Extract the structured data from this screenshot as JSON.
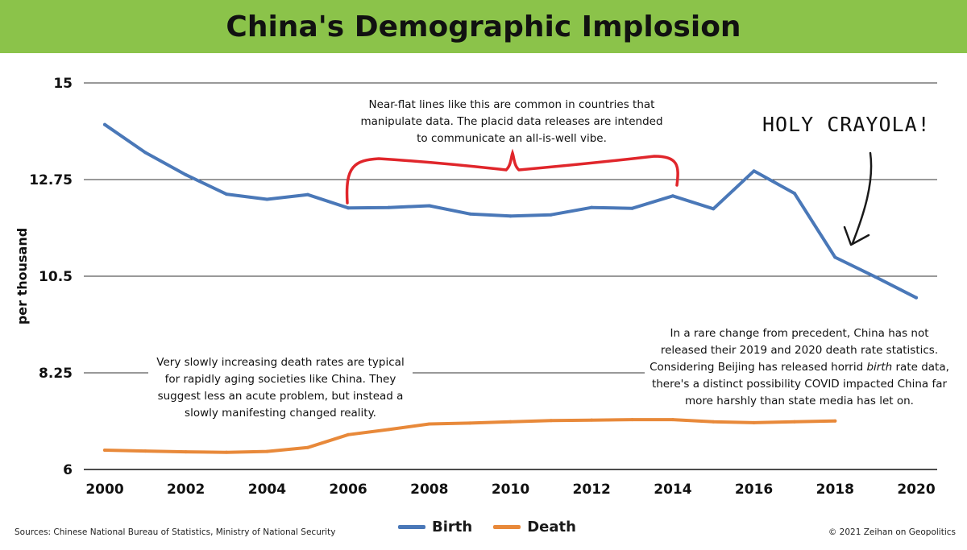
{
  "header": {
    "title": "China's Demographic Implosion"
  },
  "chart_data": {
    "type": "line",
    "title": "China's Demographic Implosion",
    "xlabel": "",
    "ylabel": "per thousand",
    "ylim": [
      6,
      15
    ],
    "yticks": [
      "15",
      "12.75",
      "10.5",
      "8.25",
      "6"
    ],
    "ytick_values": [
      15,
      12.75,
      10.5,
      8.25,
      6
    ],
    "xticks": [
      2000,
      2002,
      2004,
      2006,
      2008,
      2010,
      2012,
      2014,
      2016,
      2018,
      2020
    ],
    "grid": true,
    "legend_position": "bottom-center",
    "series": [
      {
        "name": "Birth",
        "color": "#4a78b8",
        "x": [
          2000,
          2001,
          2002,
          2003,
          2004,
          2005,
          2006,
          2007,
          2008,
          2009,
          2010,
          2011,
          2012,
          2013,
          2014,
          2015,
          2016,
          2017,
          2018,
          2019,
          2020
        ],
        "values": [
          14.03,
          13.38,
          12.86,
          12.41,
          12.29,
          12.4,
          12.09,
          12.1,
          12.14,
          11.95,
          11.9,
          11.93,
          12.1,
          12.08,
          12.37,
          12.07,
          12.95,
          12.43,
          10.94,
          10.48,
          10.0
        ]
      },
      {
        "name": "Death",
        "color": "#e8893a",
        "x": [
          2000,
          2001,
          2002,
          2003,
          2004,
          2005,
          2006,
          2007,
          2008,
          2009,
          2010,
          2011,
          2012,
          2013,
          2014,
          2015,
          2016,
          2017,
          2018
        ],
        "values": [
          6.45,
          6.43,
          6.41,
          6.4,
          6.42,
          6.51,
          6.81,
          6.93,
          7.06,
          7.08,
          7.11,
          7.14,
          7.15,
          7.16,
          7.16,
          7.11,
          7.09,
          7.11,
          7.13
        ]
      }
    ],
    "annotations": {
      "flat_note": "Near-flat lines like this are common in countries that manipulate data. The placid data releases are intended to communicate an all-is-well vibe.",
      "holy": "HOLY CRAYOLA!",
      "death_note": "Very slowly increasing death rates are typical for rapidly aging societies like China. They suggest less an acute problem, but instead a slowly manifesting changed reality.",
      "covid_note_a": "In a rare change from precedent, China has not released their 2019 and 2020 death rate statistics. Considering Beijing has released horrid ",
      "covid_note_em": "birth",
      "covid_note_b": " rate data, there's a distinct possibility COVID impacted China far more harshly than state media has let on."
    }
  },
  "footer": {
    "source": "Sources: Chinese National Bureau of Statistics, Ministry of National Security",
    "copyright": "© 2021 Zeihan on Geopolitics"
  }
}
